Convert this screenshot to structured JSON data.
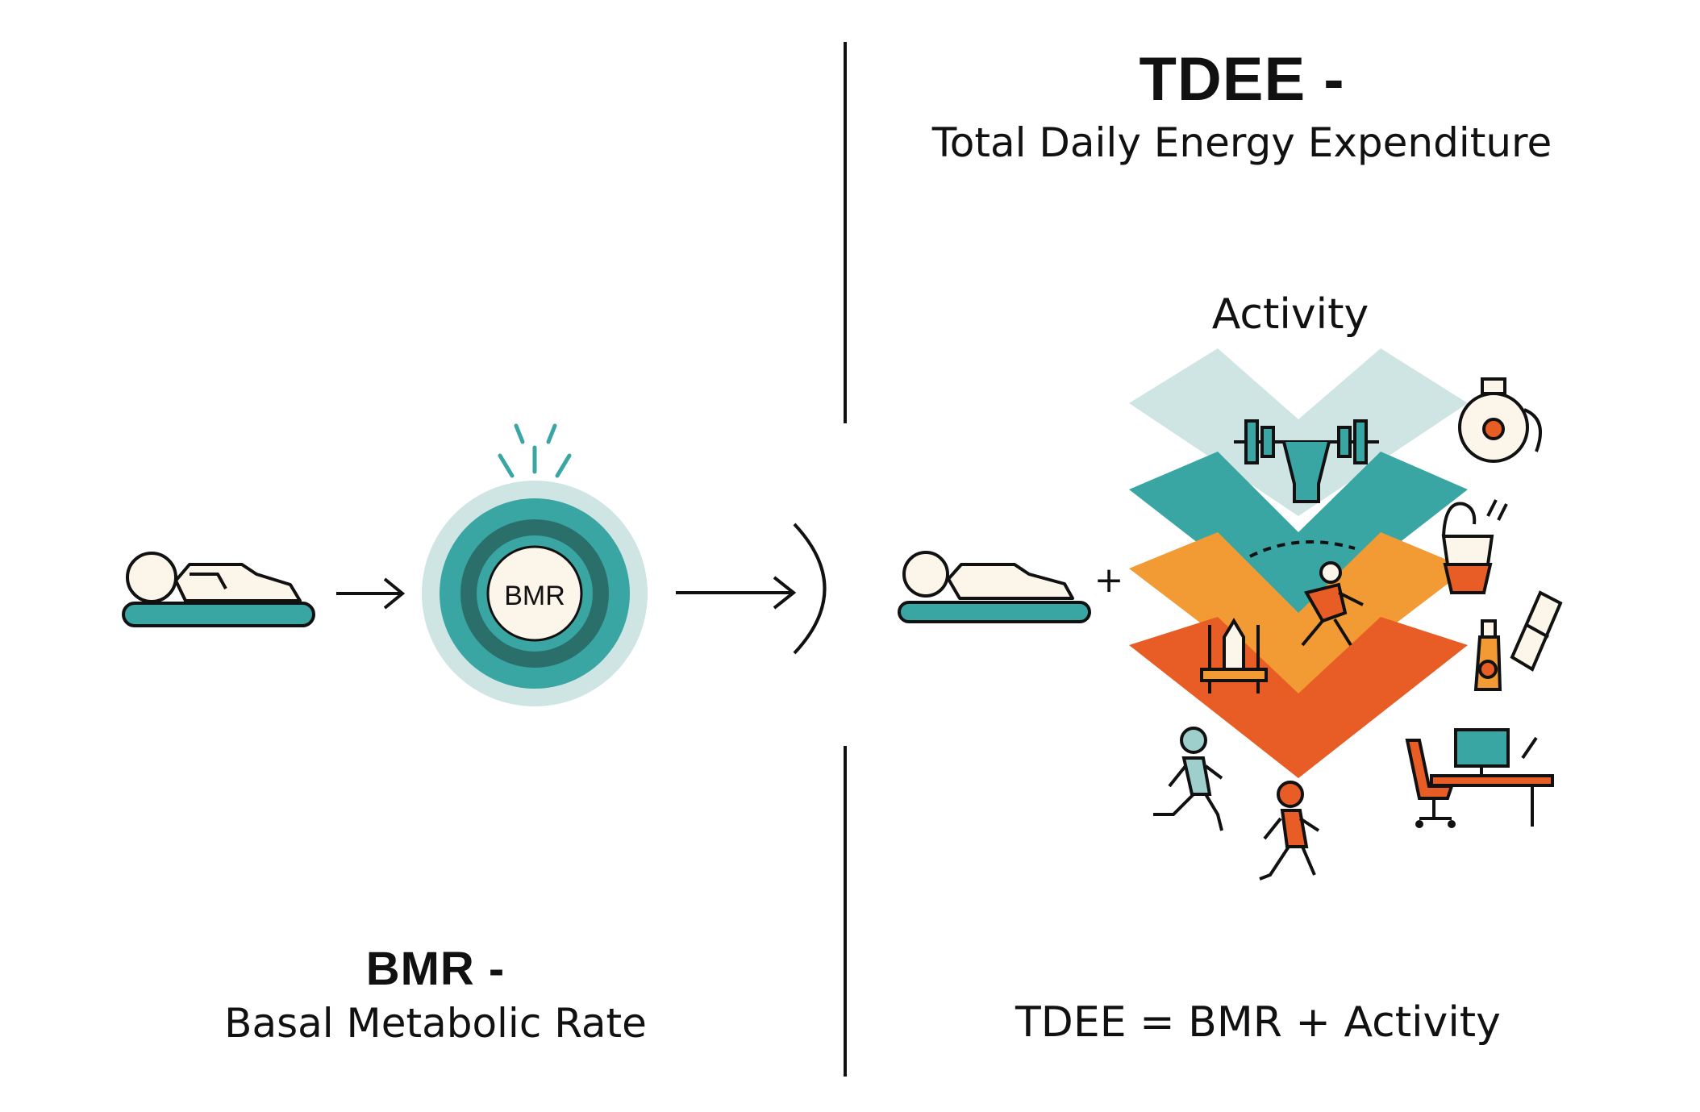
{
  "header": {
    "tdee_title": "TDEE -",
    "tdee_subtitle": "Total Daily Energy Expenditure"
  },
  "left": {
    "bmr_badge": "BMR",
    "bmr_title": "BMR -",
    "bmr_subtitle": "Basal Metabolic Rate"
  },
  "right": {
    "activity_label": "Activity",
    "plus_sign": "+",
    "formula": "TDEE = BMR + Activity"
  },
  "colors": {
    "teal": "#3aa6a4",
    "dark_teal": "#2b6f6b",
    "light_teal": "#cfe5e3",
    "orange": "#f29a33",
    "red_orange": "#e85d26",
    "cream": "#fbf5ea"
  },
  "icons": [
    "sleeping-person-icon",
    "barbell-icon",
    "kettlebell-icon",
    "bucket-icon",
    "bottle-icon",
    "dancer-icon",
    "shrine-icon",
    "runner-icon",
    "desk-computer-icon"
  ]
}
